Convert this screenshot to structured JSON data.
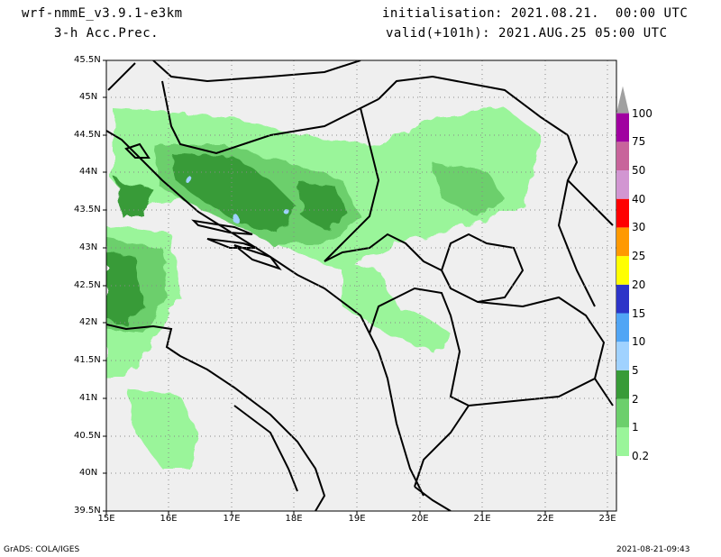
{
  "header": {
    "model": "wrf-nmmE_v3.9.1-e3km",
    "field": "3-h Acc.Prec.",
    "init": "initialisation: 2021.08.21.  00:00 UTC",
    "valid": "valid(+101h): 2021.AUG.25 05:00 UTC"
  },
  "map": {
    "lat_labels": [
      "45.5N",
      "45N",
      "44.5N",
      "44N",
      "43.5N",
      "43N",
      "42.5N",
      "42N",
      "41.5N",
      "41N",
      "40.5N",
      "40N",
      "39.5N"
    ],
    "lon_labels": [
      "15E",
      "16E",
      "17E",
      "18E",
      "19E",
      "20E",
      "21E",
      "22E",
      "23E"
    ],
    "land_color": "#efefef",
    "border_color": "#000000"
  },
  "legend": {
    "labels": [
      "0.2",
      "1",
      "2",
      "5",
      "10",
      "15",
      "20",
      "25",
      "30",
      "40",
      "50",
      "75",
      "100"
    ],
    "colors": [
      "#9af59a",
      "#6ccf6c",
      "#379b37",
      "#a0d2ff",
      "#50a5f5",
      "#2c34c8",
      "#ffff00",
      "#ff9900",
      "#ff0000",
      "#d296d2",
      "#c8649b",
      "#a000a0"
    ],
    "over_color": "#a0a0a0"
  },
  "footer": {
    "left": "GrADS: COLA/IGES",
    "right": "2021-08-21-09:43"
  }
}
